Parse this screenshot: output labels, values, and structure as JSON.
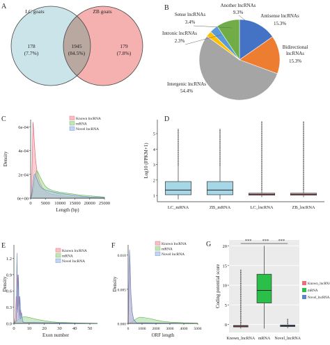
{
  "colors": {
    "known": "#f4a6aa",
    "mrna": "#a6d99a",
    "novel": "#a9c3ea",
    "box_blue": "#a6d7e6",
    "box_red": "#f0a9b0",
    "venn_left": "#c2dfe6",
    "venn_right": "#f29c9c",
    "venn_overlap": "#b8a8a0",
    "pie_antisense": "#4472c4",
    "pie_bidirectional": "#ed7d31",
    "pie_intergenic": "#a5a5a5",
    "pie_intronic": "#ffc000",
    "pie_sense": "#5b9bd5",
    "pie_another": "#70ad47",
    "boxG_known": "#e8707a",
    "boxG_mrna": "#2bbf4a",
    "boxG_novel": "#5a86c8"
  },
  "panels": {
    "A": "A",
    "B": "B",
    "C": "C",
    "D": "D",
    "E": "E",
    "F": "F",
    "G": "G"
  },
  "chart_data": [
    {
      "id": "A",
      "type": "venn",
      "sets": [
        "LC goats",
        "ZB goats"
      ],
      "regions": [
        {
          "label": "178",
          "pct": "(7.7%)"
        },
        {
          "label": "1945",
          "pct": "(84.5%)"
        },
        {
          "label": "179",
          "pct": "(7.8%)"
        }
      ]
    },
    {
      "id": "B",
      "type": "pie",
      "slices": [
        {
          "name": "Antisense lncRNAs",
          "pct_label": "15.3%",
          "value": 15.3,
          "color": "#4472c4"
        },
        {
          "name": "Bidirectional lncRNAs",
          "name_lines": [
            "Bidirectional",
            "lncRNAs"
          ],
          "pct_label": "15.3%",
          "value": 15.3,
          "color": "#ed7d31"
        },
        {
          "name": "Intergenic lncRNAs",
          "pct_label": "54.4%",
          "value": 54.4,
          "color": "#a5a5a5"
        },
        {
          "name": "Intronic lncRNAs",
          "pct_label": "2.3%",
          "value": 2.3,
          "color": "#ffc000"
        },
        {
          "name": "Sense lncRNAs",
          "pct_label": "3.4%",
          "value": 3.4,
          "color": "#5b9bd5"
        },
        {
          "name": "Another lncRNAs",
          "pct_label": "9.3%",
          "value": 9.3,
          "color": "#70ad47"
        }
      ]
    },
    {
      "id": "C",
      "type": "area",
      "xlabel": "Length (bp)",
      "ylabel": "Density",
      "xlim": [
        0,
        25000
      ],
      "ylim": [
        0,
        0.00066
      ],
      "xticks": [
        0,
        5000,
        10000,
        15000,
        20000,
        25000
      ],
      "xtick_labels": [
        "0",
        "5000",
        "10000",
        "15000",
        "20000",
        "25000"
      ],
      "yticks": [
        0,
        0.0002,
        0.0004,
        0.0006
      ],
      "ytick_labels": [
        "0e+00",
        "2e-04",
        "4e-04",
        "6e-04"
      ],
      "legend": "top-right",
      "series": [
        {
          "name": "Known lncRNA",
          "x": [
            0,
            300,
            600,
            800,
            1000,
            1300,
            1700,
            2200,
            3000,
            4000,
            5500,
            7000,
            9000,
            12000,
            16000,
            20000,
            25000
          ],
          "y": [
            0,
            4e-05,
            0.0004,
            0.00064,
            0.00058,
            0.00045,
            0.00032,
            0.00022,
            0.00014,
            9e-05,
            5e-05,
            3.5e-05,
            2.5e-05,
            1.5e-05,
            1e-05,
            6e-06,
            3e-06
          ]
        },
        {
          "name": "mRNA",
          "x": [
            0,
            500,
            1000,
            1500,
            2000,
            2500,
            3000,
            4000,
            5000,
            6000,
            8000,
            10000,
            13000,
            16000,
            20000,
            25000
          ],
          "y": [
            0,
            2e-05,
            9e-05,
            0.00018,
            0.00023,
            0.00022,
            0.00019,
            0.00014,
            0.0001,
            8e-05,
            6e-05,
            5e-05,
            4e-05,
            3e-05,
            2e-05,
            1e-05
          ]
        },
        {
          "name": "Novel lncRNA",
          "x": [
            0,
            400,
            800,
            1200,
            1600,
            2000,
            2600,
            3200,
            4000,
            5000,
            6500,
            8000,
            10000,
            13000,
            16000,
            20000,
            25000
          ],
          "y": [
            0,
            3e-05,
            0.00013,
            0.0002,
            0.0002,
            0.00017,
            0.00013,
            0.0001,
            8e-05,
            7e-05,
            6e-05,
            5e-05,
            4e-05,
            3e-05,
            2e-05,
            1e-05,
            5e-06
          ]
        }
      ]
    },
    {
      "id": "D",
      "type": "box",
      "ylabel": "Log10 (FPKM+1)",
      "ylim": [
        0.6,
        5.9
      ],
      "yticks": [
        1,
        2,
        3,
        4,
        5
      ],
      "categories": [
        "LC_mRNA",
        "ZB_mRNA",
        "LC_lncRNA",
        "ZB_lncRNA"
      ],
      "boxes": [
        {
          "q1": 1.05,
          "median": 1.35,
          "q3": 1.9,
          "whisker_low": 0.75,
          "whisker_high": 2.95,
          "outlier_max": 5.3,
          "color": "#a6d7e6"
        },
        {
          "q1": 1.05,
          "median": 1.35,
          "q3": 1.9,
          "whisker_low": 0.75,
          "whisker_high": 2.95,
          "outlier_max": 5.3,
          "color": "#a6d7e6"
        },
        {
          "q1": 1.02,
          "median": 1.08,
          "q3": 1.15,
          "whisker_low": 0.9,
          "whisker_high": 1.35,
          "outlier_max": 5.8,
          "color": "#f0a9b0"
        },
        {
          "q1": 1.02,
          "median": 1.08,
          "q3": 1.15,
          "whisker_low": 0.9,
          "whisker_high": 1.35,
          "outlier_max": 5.8,
          "color": "#f0a9b0"
        }
      ]
    },
    {
      "id": "E",
      "type": "area",
      "xlabel": "Exon number",
      "ylabel": "Density",
      "xlim": [
        0,
        55
      ],
      "ylim": [
        0,
        1.45
      ],
      "xticks": [
        0,
        10,
        20,
        30,
        40,
        50
      ],
      "xtick_labels": [
        "0",
        "10",
        "20",
        "30",
        "40",
        "50"
      ],
      "yticks": [
        0,
        0.3,
        0.6,
        0.9,
        1.2
      ],
      "ytick_labels": [
        "0.0",
        "0.3",
        "0.6",
        "0.9",
        "1.2"
      ],
      "legend": "top-right",
      "series": [
        {
          "name": "Known lncRNA",
          "x": [
            0,
            1,
            1.5,
            2,
            2.5,
            3,
            3.5,
            4,
            4.5,
            5,
            6,
            8,
            55
          ],
          "y": [
            0,
            0.1,
            0.5,
            0.25,
            0.9,
            0.3,
            0.5,
            0.15,
            0.25,
            0.05,
            0.03,
            0.01,
            0
          ]
        },
        {
          "name": "mRNA",
          "x": [
            0,
            1,
            2,
            4,
            6,
            8,
            10,
            13,
            16,
            20,
            25,
            30,
            40,
            50,
            55
          ],
          "y": [
            0,
            0.02,
            0.05,
            0.1,
            0.12,
            0.12,
            0.11,
            0.09,
            0.07,
            0.05,
            0.03,
            0.02,
            0.01,
            0.005,
            0.003
          ]
        },
        {
          "name": "Novel lncRNA",
          "x": [
            0,
            1.5,
            2,
            2.5,
            3,
            3.5,
            4,
            4.5,
            5,
            6,
            55
          ],
          "y": [
            0,
            0.05,
            1.3,
            0.2,
            0.9,
            0.1,
            0.5,
            0.08,
            0.2,
            0.02,
            0
          ]
        }
      ]
    },
    {
      "id": "F",
      "type": "area",
      "xlabel": "ORF length",
      "ylabel": "Density",
      "xlim": [
        0,
        5000
      ],
      "ylim": [
        0,
        0.0115
      ],
      "xticks": [
        0,
        1000,
        2000,
        3000,
        4000,
        5000
      ],
      "xtick_labels": [
        "0",
        "1000",
        "2000",
        "3000",
        "4000",
        "5000"
      ],
      "yticks": [
        0,
        0.005,
        0.01
      ],
      "ytick_labels": [
        "0.000",
        "0.005",
        "0.010"
      ],
      "legend": "top-right",
      "series": [
        {
          "name": "Known lncRNA",
          "x": [
            0,
            50,
            100,
            150,
            200,
            300,
            400,
            600,
            5000
          ],
          "y": [
            0,
            0.004,
            0.0105,
            0.008,
            0.004,
            0.0015,
            0.0005,
            0.0001,
            0
          ]
        },
        {
          "name": "mRNA",
          "x": [
            0,
            200,
            400,
            600,
            800,
            1000,
            1300,
            1600,
            2000,
            2500,
            3000,
            4000,
            5000
          ],
          "y": [
            0,
            0.0001,
            0.0004,
            0.0007,
            0.0009,
            0.0009,
            0.0008,
            0.0007,
            0.0005,
            0.0003,
            0.0002,
            0.0001,
            5e-05
          ]
        },
        {
          "name": "Novel lncRNA",
          "x": [
            0,
            50,
            100,
            150,
            200,
            300,
            400,
            600,
            5000
          ],
          "y": [
            0,
            0.005,
            0.0108,
            0.0085,
            0.0045,
            0.0016,
            0.0006,
            0.0001,
            0
          ]
        }
      ]
    },
    {
      "id": "G",
      "type": "box",
      "ylabel": "Coding potential score",
      "ylim": [
        -2,
        21.5
      ],
      "yticks": [
        0,
        5,
        10,
        15,
        20
      ],
      "categories": [
        "Known_lncRNA",
        "mRNA",
        "Novel_lncRNA"
      ],
      "significance": [
        "***",
        "***",
        "***"
      ],
      "legend": "right",
      "legend_items": [
        "Known_lncRNA",
        "mRNA",
        "Novel_lncRNA"
      ],
      "boxes": [
        {
          "q1": -0.6,
          "median": -0.4,
          "q3": -0.2,
          "whisker_low": -1.0,
          "whisker_high": 0.2,
          "outlier_max": 14,
          "color": "#e8707a"
        },
        {
          "q1": 5.5,
          "median": 8.7,
          "q3": 12.8,
          "whisker_low": -1.0,
          "whisker_high": 20.0,
          "outlier_max": 20.0,
          "color": "#2bbf4a"
        },
        {
          "q1": -0.5,
          "median": -0.3,
          "q3": -0.1,
          "whisker_low": -0.9,
          "whisker_high": 0.3,
          "outlier_max": 1.5,
          "color": "#5a86c8"
        }
      ]
    }
  ]
}
